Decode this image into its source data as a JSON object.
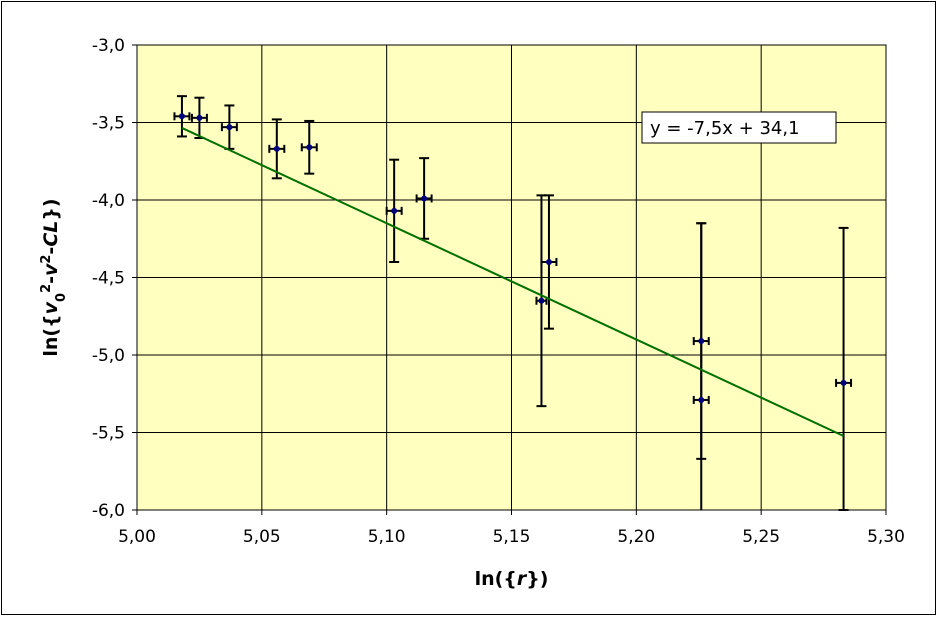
{
  "chart_data": {
    "type": "scatter",
    "xlabel_parts": [
      {
        "t": "ln({",
        "italic": false,
        "sup": false
      },
      {
        "t": "r",
        "italic": true,
        "sup": false
      },
      {
        "t": "})",
        "italic": false,
        "sup": false
      }
    ],
    "ylabel_parts": [
      {
        "t": "ln({",
        "italic": false,
        "sup": false
      },
      {
        "t": "v",
        "italic": true,
        "sup": false
      },
      {
        "t": "0",
        "italic": false,
        "sup": false,
        "sub": true
      },
      {
        "t": "2",
        "italic": false,
        "sup": true
      },
      {
        "t": "-",
        "italic": false,
        "sup": false
      },
      {
        "t": "v",
        "italic": true,
        "sup": false
      },
      {
        "t": "2",
        "italic": false,
        "sup": true
      },
      {
        "t": "-",
        "italic": false,
        "sup": false
      },
      {
        "t": "CL",
        "italic": true,
        "sup": false
      },
      {
        "t": "})",
        "italic": false,
        "sup": false
      }
    ],
    "xlim": [
      5.0,
      5.3
    ],
    "ylim": [
      -6.0,
      -3.0
    ],
    "x_ticks": [
      "5,00",
      "5,05",
      "5,10",
      "5,15",
      "5,20",
      "5,25",
      "5,30"
    ],
    "y_ticks": [
      "-3,0",
      "-3,5",
      "-4,0",
      "-4,5",
      "-5,0",
      "-5,5",
      "-6,0"
    ],
    "grid": true,
    "plot_background": "#ffffc0",
    "marker_color": "#00007f",
    "errorbar_color": "#000000",
    "trendline_color": "#007000",
    "trendline": {
      "slope": -7.5,
      "intercept": 34.1,
      "x_range": [
        5.018,
        5.283
      ],
      "equation_label": "y = -7,5x + 34,1"
    },
    "points": [
      {
        "x": 5.018,
        "y": -3.46,
        "xerr": 0.003,
        "yerr": 0.13
      },
      {
        "x": 5.025,
        "y": -3.47,
        "xerr": 0.003,
        "yerr": 0.13
      },
      {
        "x": 5.037,
        "y": -3.53,
        "xerr": 0.003,
        "yerr": 0.14
      },
      {
        "x": 5.056,
        "y": -3.67,
        "xerr": 0.003,
        "yerr": 0.19
      },
      {
        "x": 5.069,
        "y": -3.66,
        "xerr": 0.003,
        "yerr": 0.17
      },
      {
        "x": 5.103,
        "y": -4.07,
        "xerr": 0.003,
        "yerr": 0.33
      },
      {
        "x": 5.115,
        "y": -3.99,
        "xerr": 0.003,
        "yerr": 0.26
      },
      {
        "x": 5.162,
        "y": -4.65,
        "xerr": 0.002,
        "yerr": 0.68
      },
      {
        "x": 5.165,
        "y": -4.4,
        "xerr": 0.003,
        "yerr": 0.43
      },
      {
        "x": 5.226,
        "y": -4.91,
        "xerr": 0.003,
        "yerr": 0.76
      },
      {
        "x": 5.226,
        "y": -5.29,
        "xerr": 0.003,
        "yerr": 1.14
      },
      {
        "x": 5.283,
        "y": -5.18,
        "xerr": 0.003,
        "yerr_plus": 1.0,
        "yerr_minus": 0.82
      }
    ]
  }
}
